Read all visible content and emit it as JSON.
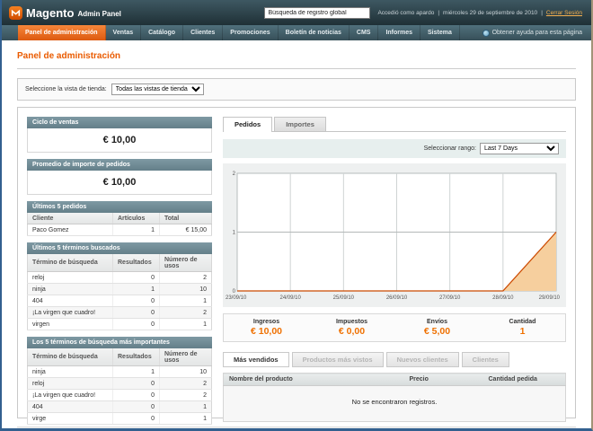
{
  "header": {
    "brand": "Magento",
    "brand_sub": "Admin Panel",
    "search_value": "Búsqueda de registro global",
    "logged_in_as": "Accedió como apardo",
    "separator": "|",
    "date": "miércoles 29 de septiembre de 2010",
    "logout_label": "Cerrar Sesión"
  },
  "nav": {
    "items": [
      "Panel de administración",
      "Ventas",
      "Catálogo",
      "Clientes",
      "Promociones",
      "Boletín de noticias",
      "CMS",
      "Informes",
      "Sistema"
    ],
    "active_index": 0,
    "help_label": "Obtener ayuda para esta página"
  },
  "page": {
    "title": "Panel de administración",
    "store_view": {
      "label": "Seleccione la vista de tienda:",
      "selected": "Todas las vistas de tienda"
    }
  },
  "sidebar": {
    "stat_boxes": [
      {
        "title": "Ciclo de ventas",
        "value": "€ 10,00"
      },
      {
        "title": "Promedio de importe de pedidos",
        "value": "€ 10,00"
      }
    ],
    "tables": [
      {
        "title": "Últimos 5 pedidos",
        "columns": [
          "Cliente",
          "Artículos",
          "Total"
        ],
        "rows": [
          [
            "Paco Gomez",
            "1",
            "€ 15,00"
          ]
        ]
      },
      {
        "title": "Últimos 5 términos buscados",
        "columns": [
          "Término de búsqueda",
          "Resultados",
          "Número de usos"
        ],
        "rows": [
          [
            "reloj",
            "0",
            "2"
          ],
          [
            "ninja",
            "1",
            "10"
          ],
          [
            "404",
            "0",
            "1"
          ],
          [
            "¡La virgen que cuadro!",
            "0",
            "2"
          ],
          [
            "virgen",
            "0",
            "1"
          ]
        ]
      },
      {
        "title": "Los 5 términos de búsqueda más importantes",
        "columns": [
          "Término de búsqueda",
          "Resultados",
          "Número de usos"
        ],
        "rows": [
          [
            "ninja",
            "1",
            "10"
          ],
          [
            "reloj",
            "0",
            "2"
          ],
          [
            "¡La virgen que cuadro!",
            "0",
            "2"
          ],
          [
            "404",
            "0",
            "1"
          ],
          [
            "virge",
            "0",
            "1"
          ]
        ]
      }
    ]
  },
  "main": {
    "tabs": [
      "Pedidos",
      "Importes"
    ],
    "active_tab": 0,
    "range_label": "Seleccionar rango:",
    "range_value": "Last 7 Days",
    "totals": [
      {
        "label": "Ingresos",
        "value": "€ 10,00"
      },
      {
        "label": "Impuestos",
        "value": "€ 0,00"
      },
      {
        "label": "Envíos",
        "value": "€ 5,00"
      },
      {
        "label": "Cantidad",
        "value": "1"
      }
    ],
    "bottom_tabs": [
      {
        "label": "Más vendidos",
        "active": true
      },
      {
        "label": "Productos más vistos",
        "active": false
      },
      {
        "label": "Nuevos clientes",
        "active": false
      },
      {
        "label": "Clientes",
        "active": false
      }
    ],
    "products_table": {
      "columns": [
        "Nombre del producto",
        "Precio",
        "Cantidad pedida"
      ],
      "empty_message": "No se encontraron registros."
    }
  },
  "chart_data": {
    "type": "area",
    "title": "Pedidos — Last 7 Days",
    "x": [
      "23/09/10",
      "24/09/10",
      "25/09/10",
      "26/09/10",
      "27/09/10",
      "28/09/10",
      "29/09/10"
    ],
    "values": [
      0,
      0,
      0,
      0,
      0,
      0,
      1
    ],
    "ylim": [
      0,
      2
    ],
    "yticks": [
      0,
      1,
      2
    ],
    "grid": true,
    "legend": "none",
    "line_color": "#cc4a00",
    "fill_color": "#f6cf9e"
  },
  "colors": {
    "accent_orange": "#ea5b00",
    "value_orange": "#ef7000",
    "header_dark": "#2b3f47",
    "widget_head": "#71909b",
    "toolbar_teal": "#e7efee"
  }
}
